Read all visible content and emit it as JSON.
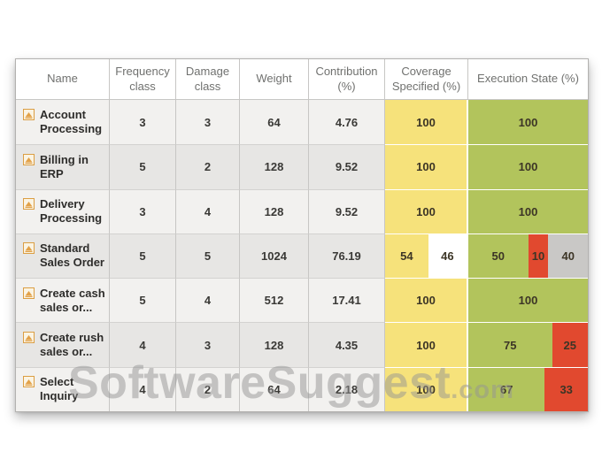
{
  "watermark": {
    "main": "SoftwareSuggest",
    "suffix": ".com"
  },
  "colors": {
    "yellow": "#f6e27b",
    "green": "#b2c45c",
    "red": "#e1492f",
    "gray": "#c9c8c6",
    "white": "#ffffff"
  },
  "table": {
    "columns": [
      "Name",
      "Frequency class",
      "Damage class",
      "Weight",
      "Contribution (%)",
      "Coverage Specified (%)",
      "Execution State (%)"
    ],
    "rows": [
      {
        "name": "Account Processing",
        "frequency_class": "3",
        "damage_class": "3",
        "weight": "64",
        "contribution": "4.76",
        "coverage": [
          {
            "value": "100",
            "color": "yellow",
            "width": 100
          }
        ],
        "execution": [
          {
            "value": "100",
            "color": "green",
            "width": 100
          }
        ]
      },
      {
        "name": "Billing in ERP",
        "frequency_class": "5",
        "damage_class": "2",
        "weight": "128",
        "contribution": "9.52",
        "coverage": [
          {
            "value": "100",
            "color": "yellow",
            "width": 100
          }
        ],
        "execution": [
          {
            "value": "100",
            "color": "green",
            "width": 100
          }
        ]
      },
      {
        "name": "Delivery Processing",
        "frequency_class": "3",
        "damage_class": "4",
        "weight": "128",
        "contribution": "9.52",
        "coverage": [
          {
            "value": "100",
            "color": "yellow",
            "width": 100
          }
        ],
        "execution": [
          {
            "value": "100",
            "color": "green",
            "width": 100
          }
        ]
      },
      {
        "name": "Standard Sales Order",
        "frequency_class": "5",
        "damage_class": "5",
        "weight": "1024",
        "contribution": "76.19",
        "coverage": [
          {
            "value": "54",
            "color": "yellow",
            "width": 53
          },
          {
            "value": "46",
            "color": "white",
            "width": 47
          }
        ],
        "execution": [
          {
            "value": "50",
            "color": "green",
            "width": 50
          },
          {
            "value": "10",
            "color": "red",
            "width": 17
          },
          {
            "value": "40",
            "color": "gray",
            "width": 33
          }
        ]
      },
      {
        "name": "Create cash sales or...",
        "frequency_class": "5",
        "damage_class": "4",
        "weight": "512",
        "contribution": "17.41",
        "coverage": [
          {
            "value": "100",
            "color": "yellow",
            "width": 100
          }
        ],
        "execution": [
          {
            "value": "100",
            "color": "green",
            "width": 100
          }
        ]
      },
      {
        "name": "Create rush sales or...",
        "frequency_class": "4",
        "damage_class": "3",
        "weight": "128",
        "contribution": "4.35",
        "coverage": [
          {
            "value": "100",
            "color": "yellow",
            "width": 100
          }
        ],
        "execution": [
          {
            "value": "75",
            "color": "green",
            "width": 70
          },
          {
            "value": "25",
            "color": "red",
            "width": 30
          }
        ]
      },
      {
        "name": "Select Inquiry",
        "frequency_class": "4",
        "damage_class": "2",
        "weight": "64",
        "contribution": "2.18",
        "coverage": [
          {
            "value": "100",
            "color": "yellow",
            "width": 100
          }
        ],
        "execution": [
          {
            "value": "67",
            "color": "green",
            "width": 64
          },
          {
            "value": "33",
            "color": "red",
            "width": 36
          }
        ]
      }
    ]
  }
}
